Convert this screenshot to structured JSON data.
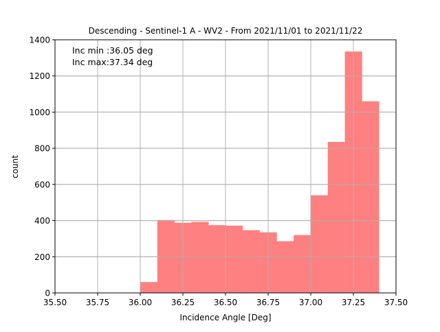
{
  "chart_data": {
    "type": "bar",
    "title": "Descending - Sentinel-1 A - WV2 - From 2021/11/01 to 2021/11/22",
    "xlabel": "Incidence Angle [Deg]",
    "ylabel": "count",
    "xlim": [
      35.5,
      37.5
    ],
    "ylim": [
      0,
      1400
    ],
    "xticks": [
      "35.50",
      "35.75",
      "36.00",
      "36.25",
      "36.50",
      "36.75",
      "37.00",
      "37.25",
      "37.50"
    ],
    "yticks": [
      "0",
      "200",
      "400",
      "600",
      "800",
      "1000",
      "1200",
      "1400"
    ],
    "grid": true,
    "bar_color": "#ff8080",
    "grid_color": "#b0b0b0",
    "bin_edges": [
      36.0,
      36.1,
      36.2,
      36.3,
      36.4,
      36.5,
      36.6,
      36.7,
      36.8,
      36.9,
      37.0,
      37.1,
      37.2,
      37.3,
      37.4
    ],
    "values": [
      60,
      403,
      388,
      393,
      375,
      372,
      347,
      335,
      286,
      320,
      540,
      835,
      1335,
      1060
    ],
    "annotations": [
      "Inc min :36.05 deg",
      "Inc max:37.34 deg"
    ]
  }
}
